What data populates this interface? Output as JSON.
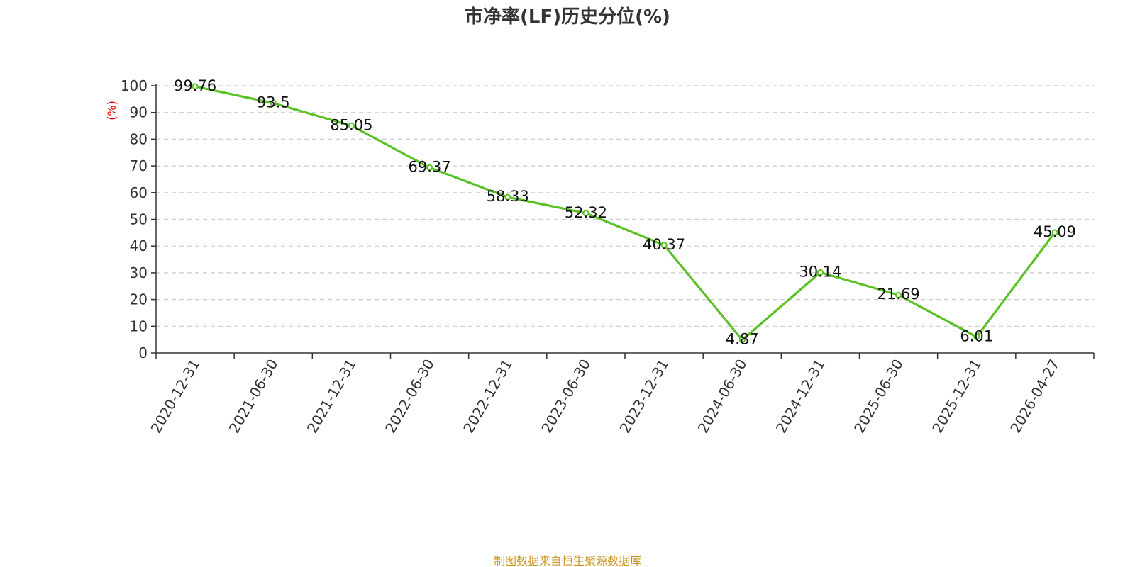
{
  "chart_data": {
    "type": "line",
    "title": "市净率(LF)历史分位(%)",
    "ylabel": "(%)",
    "xlabel": "",
    "ylim": [
      0,
      100
    ],
    "yticks": [
      0,
      10,
      20,
      30,
      40,
      50,
      60,
      70,
      80,
      90,
      100
    ],
    "grid": true,
    "categories": [
      "2020-12-31",
      "2021-06-30",
      "2021-12-31",
      "2022-06-30",
      "2022-12-31",
      "2023-06-30",
      "2023-12-31",
      "2024-06-30",
      "2024-12-31",
      "2025-06-30",
      "2025-12-31",
      "2026-04-27"
    ],
    "series": [
      {
        "values": [
          99.76,
          93.5,
          85.05,
          69.37,
          58.33,
          52.32,
          40.37,
          4.87,
          30.14,
          21.69,
          6.01,
          45.09
        ],
        "color": "#5bc126"
      }
    ],
    "data_labels": [
      "99.76",
      "93.5",
      "85.05",
      "69.37",
      "58.33",
      "52.32",
      "40.37",
      "4.87",
      "30.14",
      "21.69",
      "6.01",
      "45.09"
    ]
  },
  "colors": {
    "line": "#5bc126",
    "ylabel": "#e00000",
    "source": "#c8961e",
    "grid": "#cccccc",
    "axis": "#333333"
  },
  "footer": {
    "source": "制图数据来自恒生聚源数据库"
  }
}
